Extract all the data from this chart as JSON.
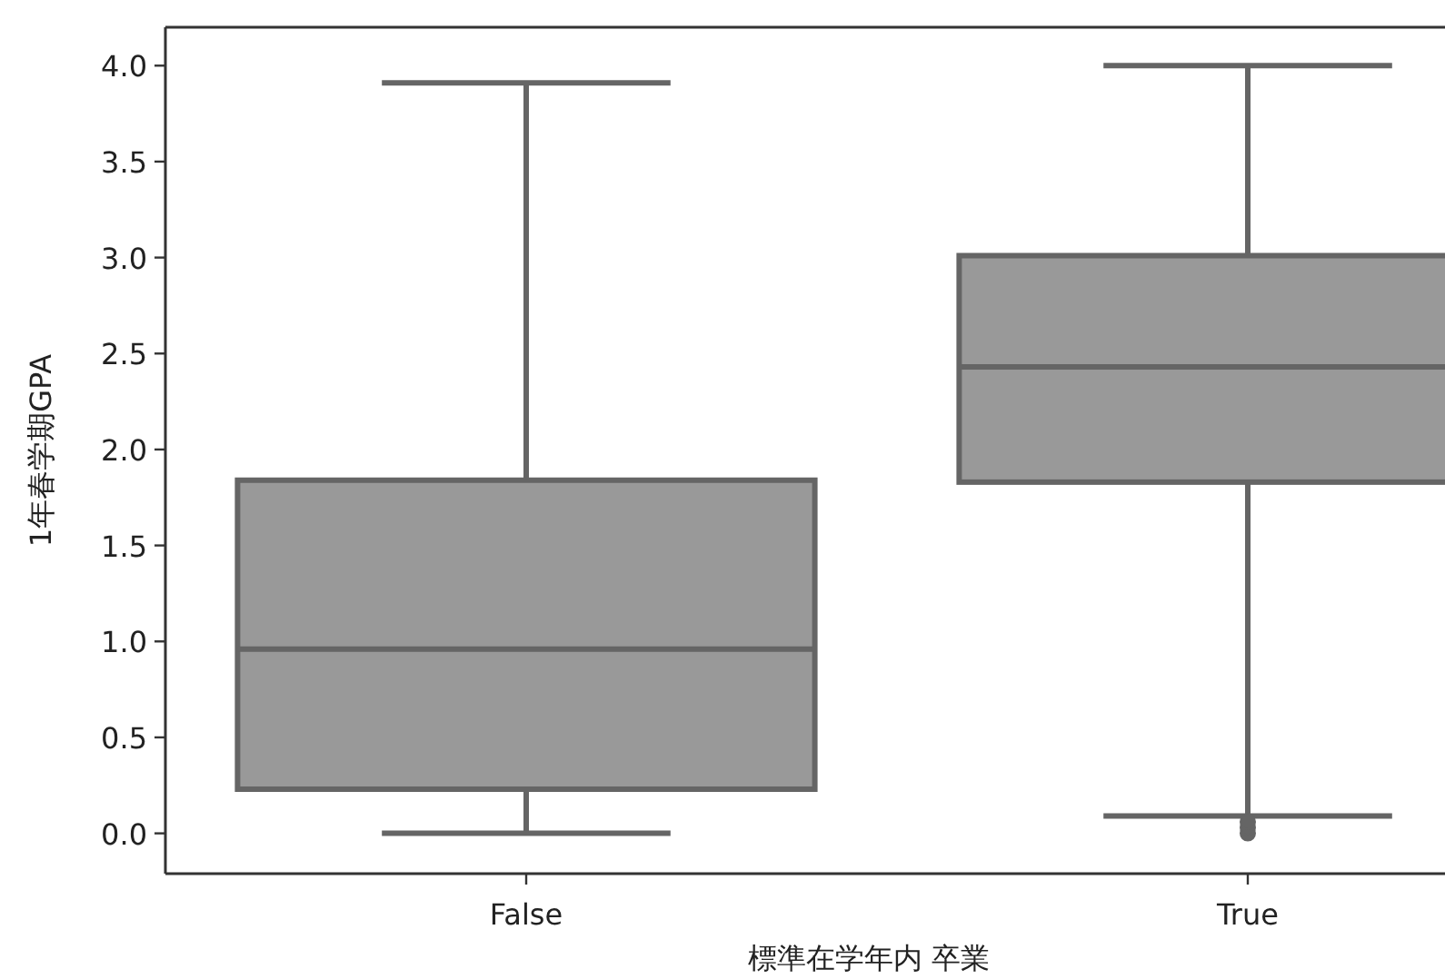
{
  "chart_data": {
    "type": "box",
    "xlabel": "標準在学年内 卒業",
    "ylabel": "1年春学期GPA",
    "categories": [
      "False",
      "True"
    ],
    "series": [
      {
        "color": "#999999",
        "boxes": [
          {
            "low": 0.0,
            "q1": 0.23,
            "median": 0.96,
            "q3": 1.84,
            "high": 3.91
          },
          {
            "low": 0.09,
            "q1": 1.83,
            "median": 2.43,
            "q3": 3.01,
            "high": 4.0,
            "outliers": [
              0.0,
              0.03,
              0.06
            ]
          }
        ]
      }
    ],
    "ylim": [
      -0.21,
      4.2
    ],
    "yticks": [
      {
        "value": 0,
        "label": "0.0"
      },
      {
        "value": 0.5,
        "label": "0.5"
      },
      {
        "value": 1,
        "label": "1.0"
      },
      {
        "value": 1.5,
        "label": "1.5"
      },
      {
        "value": 2,
        "label": "2.0"
      },
      {
        "value": 2.5,
        "label": "2.5"
      },
      {
        "value": 3,
        "label": "3.0"
      },
      {
        "value": 3.5,
        "label": "3.5"
      },
      {
        "value": 4,
        "label": "4.0"
      }
    ]
  }
}
